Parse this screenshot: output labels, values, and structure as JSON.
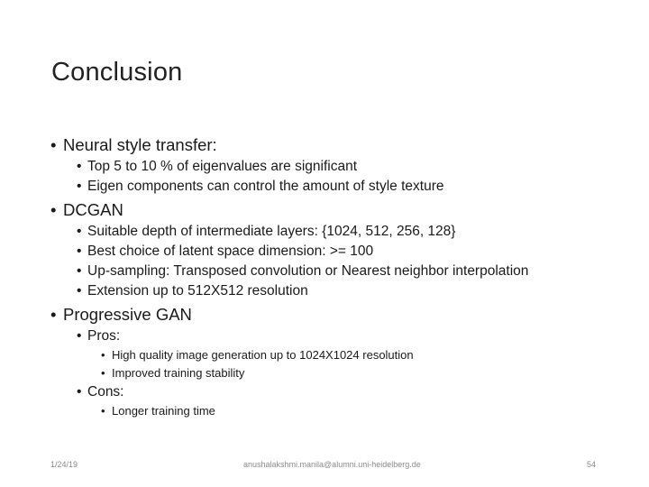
{
  "slide": {
    "title": "Conclusion",
    "bullet_char": "•",
    "items": [
      {
        "level": 1,
        "text": "Neural style transfer:"
      },
      {
        "level": 2,
        "text": "Top 5 to 10 % of eigenvalues are significant"
      },
      {
        "level": 2,
        "text": "Eigen components can control the amount of style texture"
      },
      {
        "level": 1,
        "text": "DCGAN"
      },
      {
        "level": 2,
        "text": "Suitable depth of intermediate layers: {1024, 512, 256, 128}"
      },
      {
        "level": 2,
        "text": "Best choice of latent space dimension:  >= 100"
      },
      {
        "level": 2,
        "text": "Up-sampling: Transposed convolution or Nearest neighbor interpolation"
      },
      {
        "level": 2,
        "text": "Extension up to 512X512 resolution"
      },
      {
        "level": 1,
        "text": "Progressive GAN"
      },
      {
        "level": 2,
        "text": "Pros:"
      },
      {
        "level": 3,
        "text": "High quality image generation up to 1024X1024 resolution"
      },
      {
        "level": 3,
        "text": "Improved training stability"
      },
      {
        "level": 2,
        "text": "Cons:"
      },
      {
        "level": 3,
        "text": "Longer training time"
      }
    ]
  },
  "footer": {
    "date": "1/24/19",
    "email": "anushalakshmi.manila@alumni.uni-heidelberg.de",
    "page_number": "54"
  }
}
